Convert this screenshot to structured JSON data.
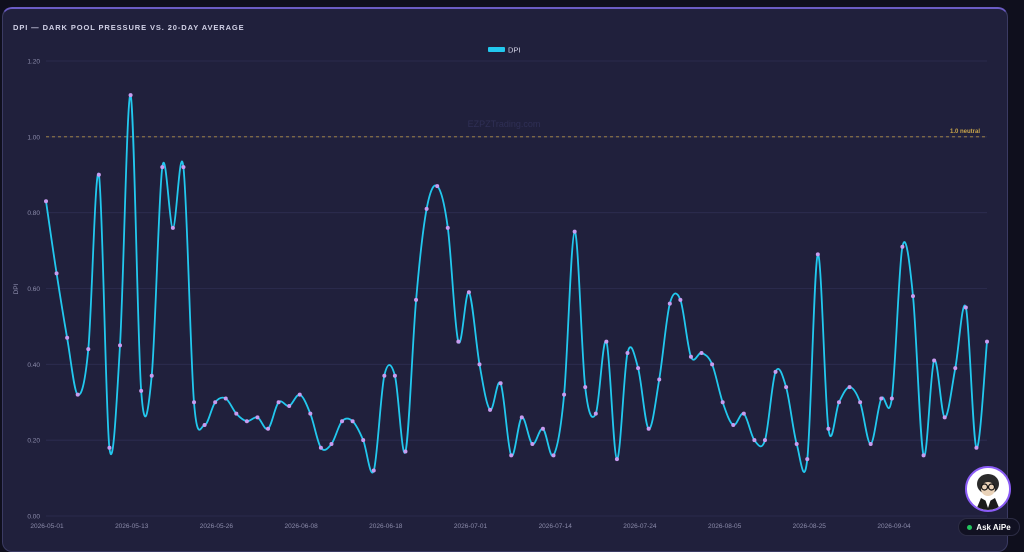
{
  "title": "DPI — DARK POOL PRESSURE VS. 20-DAY AVERAGE",
  "watermark": "EZPZTrading.com",
  "ask_button": {
    "label": "Ask AiPe"
  },
  "colors": {
    "line": "#22c8ee",
    "point": "#c89cf0",
    "reference": "#c9a54a",
    "grid": "#2e2e52",
    "tick": "#8c8cab"
  },
  "chart_data": {
    "type": "line",
    "title": "DPI — DARK POOL PRESSURE VS. 20-DAY AVERAGE",
    "xlabel": "",
    "ylabel": "DPI",
    "ylim": [
      0,
      1.2
    ],
    "yticks": [
      "0.00",
      "0.20",
      "0.40",
      "0.60",
      "0.80",
      "1.00",
      "1.20"
    ],
    "x_tick_labels": [
      "2026-05-01",
      "2026-05-13",
      "2026-05-26",
      "2026-06-08",
      "2026-06-18",
      "2026-07-01",
      "2026-07-14",
      "2026-07-24",
      "2026-08-05",
      "2026-08-25",
      "2026-09-04",
      "2026-09-16"
    ],
    "legend": {
      "placement": "top-center",
      "entries": [
        "DPI"
      ]
    },
    "reference_line": {
      "y": 1.0,
      "label": "1.0 neutral"
    },
    "grid": true,
    "series": [
      {
        "name": "DPI",
        "values": [
          0.83,
          0.64,
          0.47,
          0.32,
          0.44,
          0.9,
          0.18,
          0.45,
          1.11,
          0.33,
          0.37,
          0.92,
          0.76,
          0.92,
          0.3,
          0.24,
          0.3,
          0.31,
          0.27,
          0.25,
          0.26,
          0.23,
          0.3,
          0.29,
          0.32,
          0.27,
          0.18,
          0.19,
          0.25,
          0.25,
          0.2,
          0.12,
          0.37,
          0.37,
          0.17,
          0.57,
          0.81,
          0.87,
          0.76,
          0.46,
          0.59,
          0.4,
          0.28,
          0.35,
          0.16,
          0.26,
          0.19,
          0.23,
          0.16,
          0.32,
          0.75,
          0.34,
          0.27,
          0.46,
          0.15,
          0.43,
          0.39,
          0.23,
          0.36,
          0.56,
          0.57,
          0.42,
          0.43,
          0.4,
          0.3,
          0.24,
          0.27,
          0.2,
          0.2,
          0.38,
          0.34,
          0.19,
          0.15,
          0.69,
          0.23,
          0.3,
          0.34,
          0.3,
          0.19,
          0.31,
          0.31,
          0.71,
          0.58,
          0.16,
          0.41,
          0.26,
          0.39,
          0.55,
          0.18,
          0.46
        ]
      }
    ]
  }
}
